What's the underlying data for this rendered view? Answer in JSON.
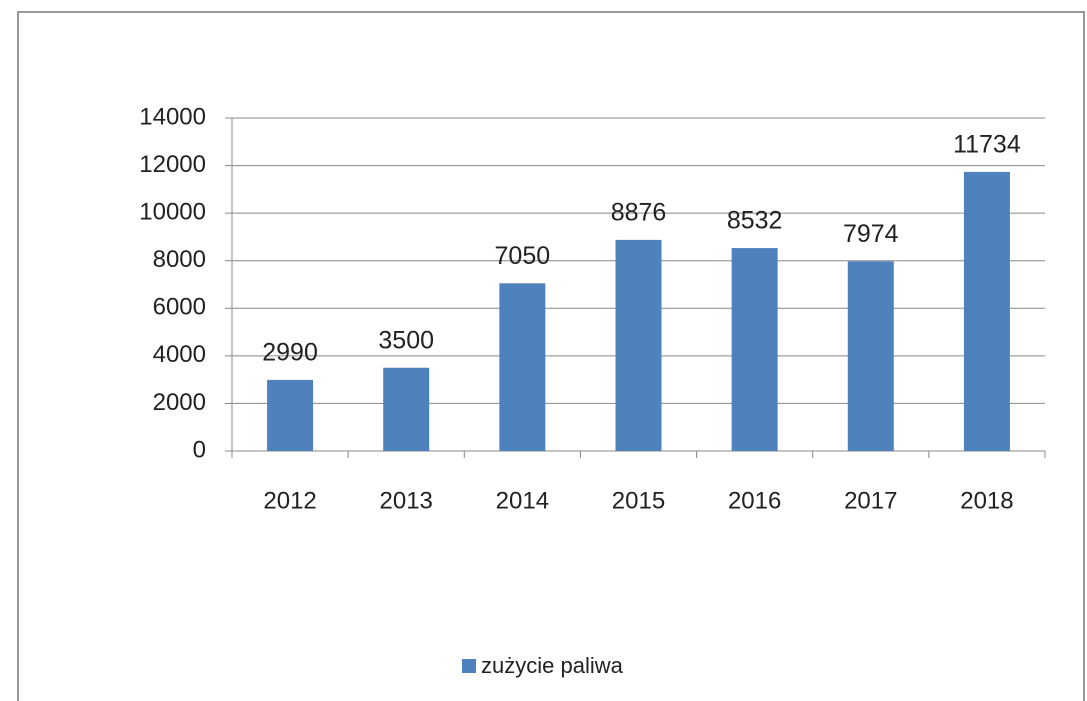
{
  "chart_data": {
    "type": "bar",
    "categories": [
      "2012",
      "2013",
      "2014",
      "2015",
      "2016",
      "2017",
      "2018"
    ],
    "series": [
      {
        "name": "zużycie paliwa",
        "color": "#4f81bd",
        "values": [
          2990,
          3500,
          7050,
          8876,
          8532,
          7974,
          11734
        ]
      }
    ],
    "ylim": [
      0,
      14000
    ],
    "yticks": [
      0,
      2000,
      4000,
      6000,
      8000,
      10000,
      12000,
      14000
    ],
    "grid": true,
    "legend": "bottom"
  }
}
